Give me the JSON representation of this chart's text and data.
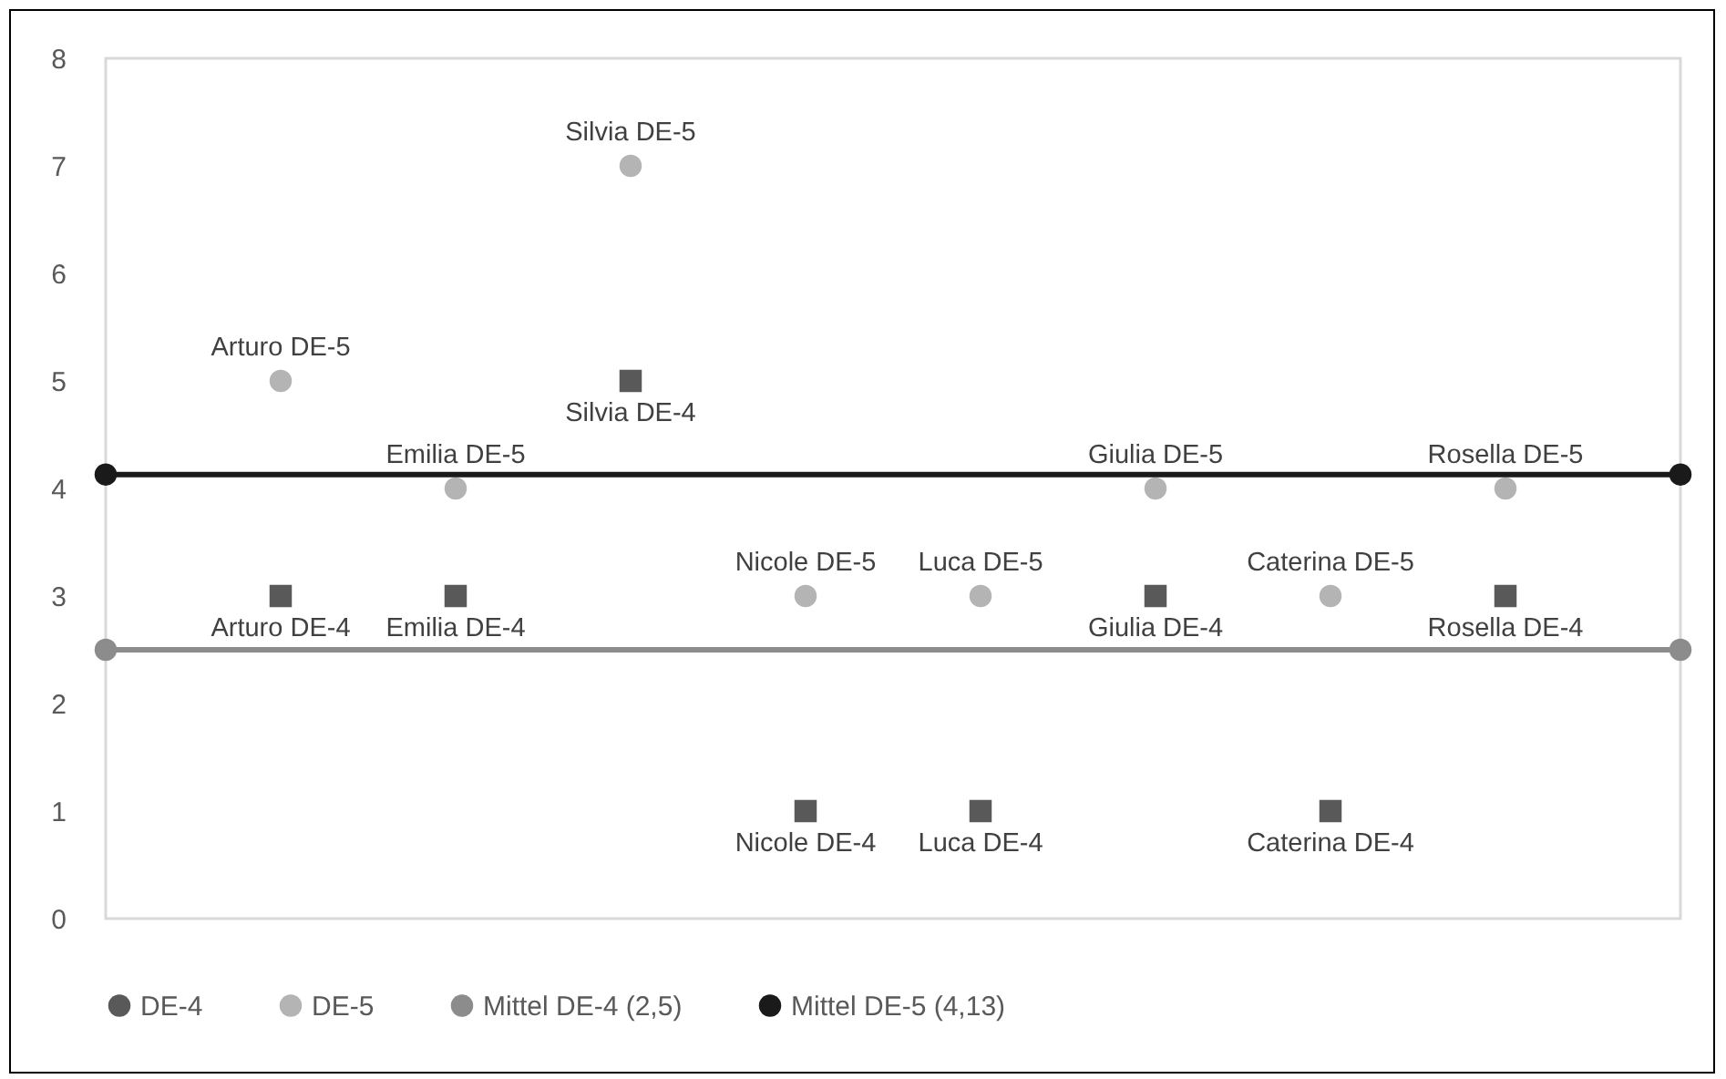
{
  "chart_data": {
    "type": "scatter",
    "categories": [
      null,
      null,
      null,
      null,
      null,
      null,
      null,
      null
    ],
    "ylim": [
      0,
      8
    ],
    "yticks": [
      0,
      1,
      2,
      3,
      4,
      5,
      6,
      7,
      8
    ],
    "legend": "bottom",
    "series": [
      {
        "name": "DE-4",
        "color": "#595959",
        "marker": "square",
        "values": [
          3,
          3,
          5,
          1,
          1,
          3,
          1,
          3
        ],
        "value_labels": [
          "Arturo DE-4",
          "Emilia DE-4",
          "Silvia DE-4",
          "Nicole DE-4",
          "Luca DE-4",
          "Giulia DE-4",
          "Caterina DE-4",
          "Rosella DE-4"
        ]
      },
      {
        "name": "DE-5",
        "color": "#b4b4b4",
        "marker": "circle",
        "values": [
          5,
          4,
          7,
          3,
          3,
          4,
          3,
          4
        ],
        "value_labels": [
          "Arturo DE-5",
          "Emilia DE-5",
          "Silvia DE-5",
          "Nicole DE-5",
          "Luca DE-5",
          "Giulia DE-5",
          "Caterina DE-5",
          "Rosella DE-5"
        ]
      }
    ],
    "ref_lines": [
      {
        "axis": "y",
        "value": 2.5,
        "label": "Mittel DE-4 (2,5)",
        "color": "#8c8c8c",
        "line_style": "solid"
      },
      {
        "axis": "y",
        "value": 4.13,
        "label": "Mittel DE-5 (4,13)",
        "color": "#1a1a1a",
        "line_style": "solid"
      }
    ]
  }
}
